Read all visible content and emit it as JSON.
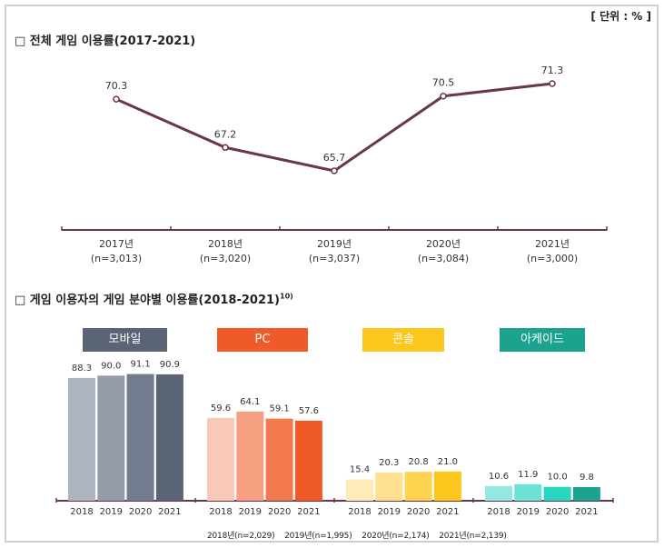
{
  "unit_label": "[ 단위 : % ]",
  "colors": {
    "line": "#6b3550",
    "axis": "#6b3550"
  },
  "chart_data": [
    {
      "type": "line",
      "title": "□ 전체 게임 이용률(2017-2021)",
      "categories": [
        "2017년",
        "2018년",
        "2019년",
        "2020년",
        "2021년"
      ],
      "sample_sizes": [
        "(n=3,013)",
        "(n=3,020)",
        "(n=3,037)",
        "(n=3,084)",
        "(n=3,000)"
      ],
      "values": [
        70.3,
        67.2,
        65.7,
        70.5,
        71.3
      ],
      "value_labels": [
        "70.3",
        "67.2",
        "65.7",
        "70.5",
        "71.3"
      ],
      "grid": false
    },
    {
      "type": "bar",
      "title": "□ 게임 이용자의 게임 분야별 이용률(2018-2021)",
      "title_footnote": "10)",
      "years": [
        "2018",
        "2019",
        "2020",
        "2021"
      ],
      "groups": [
        {
          "name": "모바일",
          "header_color": "#5a6474",
          "colors": [
            "#adb3bf",
            "#949caa",
            "#717d8f",
            "#5a6474"
          ],
          "values": [
            88.3,
            90.0,
            91.1,
            90.9
          ],
          "value_labels": [
            "88.3",
            "90.0",
            "91.1",
            "90.9"
          ]
        },
        {
          "name": "PC",
          "header_color": "#f05a28",
          "colors": [
            "#f8c9b8",
            "#f59e80",
            "#f2784d",
            "#f05a28"
          ],
          "values": [
            59.6,
            64.1,
            59.1,
            57.6
          ],
          "value_labels": [
            "59.6",
            "64.1",
            "59.1",
            "57.6"
          ]
        },
        {
          "name": "콘솔",
          "header_color": "#fdc61c",
          "colors": [
            "#feebb8",
            "#fee08f",
            "#fdd350",
            "#fdc61c"
          ],
          "values": [
            15.4,
            20.3,
            20.8,
            21.0
          ],
          "value_labels": [
            "15.4",
            "20.3",
            "20.8",
            "21.0"
          ]
        },
        {
          "name": "아케이드",
          "header_color": "#1ba38f",
          "colors": [
            "#93e9df",
            "#6ae3d4",
            "#29d6c1",
            "#1ba38f"
          ],
          "values": [
            10.6,
            11.9,
            10.0,
            9.8
          ],
          "value_labels": [
            "10.6",
            "11.9",
            "10.0",
            "9.8"
          ]
        }
      ],
      "footnote": [
        "2018년(n=2,029)",
        "2019년(n=1,995)",
        "2020년(n=2,174)",
        "2021년(n=2,139)"
      ]
    }
  ]
}
